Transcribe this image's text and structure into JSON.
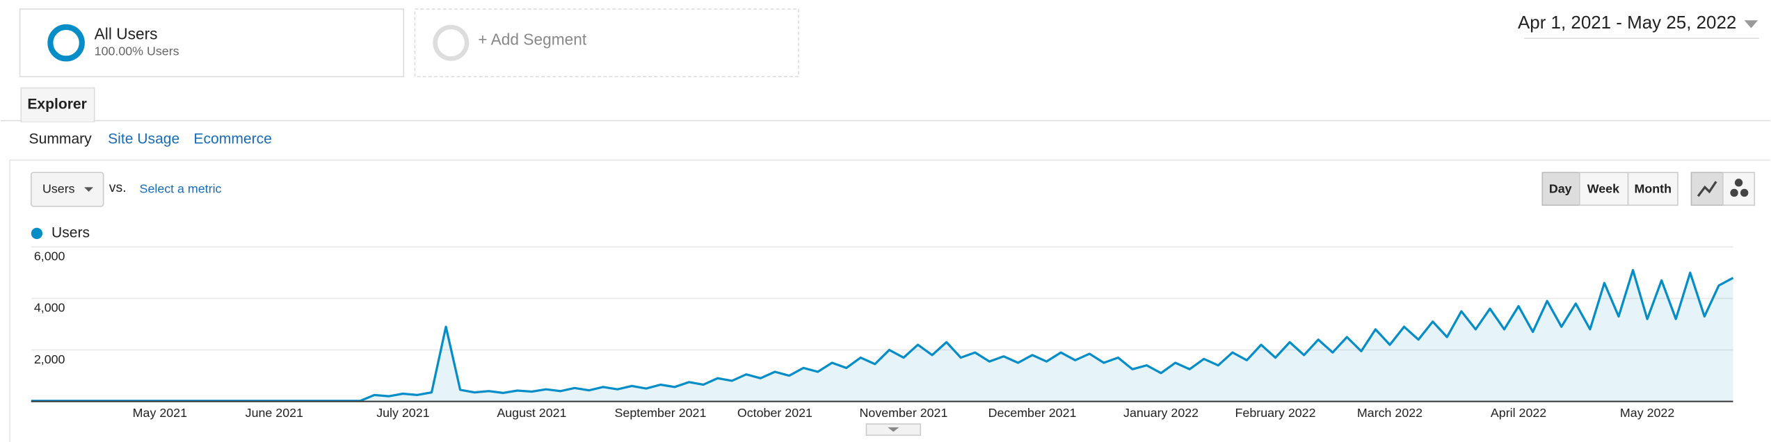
{
  "segments": [
    {
      "name": "All Users",
      "detail": "100.00% Users"
    }
  ],
  "add_segment": "+ Add Segment",
  "date_range": "Apr 1, 2021 - May 25, 2022",
  "tab": "Explorer",
  "subtabs": [
    "Summary",
    "Site Usage",
    "Ecommerce"
  ],
  "metric": "Users",
  "vs": "vs.",
  "select_metric": "Select a metric",
  "granularity": [
    "Day",
    "Week",
    "Month"
  ],
  "chart_data": {
    "type": "line",
    "categories": [
      null,
      null,
      null,
      null,
      null,
      null,
      null,
      null,
      null,
      "May 2021",
      null,
      null,
      null,
      null,
      null,
      null,
      null,
      "June 2021",
      null,
      null,
      null,
      null,
      null,
      null,
      null,
      null,
      "July 2021",
      null,
      null,
      null,
      null,
      null,
      null,
      null,
      null,
      "August 2021",
      null,
      null,
      null,
      null,
      null,
      null,
      null,
      null,
      "September 2021",
      null,
      null,
      null,
      null,
      null,
      null,
      null,
      "October 2021",
      null,
      null,
      null,
      null,
      null,
      null,
      null,
      null,
      "November 2021",
      null,
      null,
      null,
      null,
      null,
      null,
      null,
      null,
      "December 2021",
      null,
      null,
      null,
      null,
      null,
      null,
      null,
      null,
      "January 2022",
      null,
      null,
      null,
      null,
      null,
      null,
      null,
      "February 2022",
      null,
      null,
      null,
      null,
      null,
      null,
      null,
      "March 2022",
      null,
      null,
      null,
      null,
      null,
      null,
      null,
      null,
      "April 2022",
      null,
      null,
      null,
      null,
      null,
      null,
      null,
      null,
      "May 2022",
      null,
      null,
      null,
      null,
      null,
      null
    ],
    "series": [
      {
        "name": "Users",
        "color": "#058dc7",
        "values": [
          20,
          20,
          20,
          20,
          20,
          20,
          20,
          20,
          20,
          20,
          20,
          20,
          20,
          20,
          20,
          20,
          20,
          20,
          20,
          20,
          20,
          20,
          20,
          20,
          250,
          200,
          300,
          250,
          350,
          2900,
          450,
          350,
          400,
          330,
          420,
          380,
          470,
          400,
          520,
          430,
          560,
          470,
          600,
          500,
          650,
          560,
          750,
          650,
          900,
          800,
          1050,
          900,
          1150,
          1000,
          1300,
          1150,
          1500,
          1300,
          1700,
          1450,
          2000,
          1700,
          2200,
          1800,
          2300,
          1700,
          1900,
          1550,
          1750,
          1500,
          1800,
          1550,
          1900,
          1600,
          1850,
          1500,
          1700,
          1250,
          1400,
          1100,
          1500,
          1250,
          1650,
          1400,
          1900,
          1600,
          2200,
          1700,
          2300,
          1800,
          2400,
          1900,
          2500,
          1950,
          2800,
          2200,
          2900,
          2400,
          3100,
          2500,
          3500,
          2800,
          3600,
          2800,
          3700,
          2700,
          3900,
          2900,
          3800,
          2800,
          4600,
          3300,
          5100,
          3200,
          4700,
          3200,
          5000,
          3300,
          4500,
          4800
        ]
      }
    ],
    "ylim": [
      0,
      6000
    ],
    "yticks": [
      {
        "value": 2000,
        "label": "2,000"
      },
      {
        "value": 4000,
        "label": "4,000"
      },
      {
        "value": 6000,
        "label": "6,000"
      }
    ],
    "grid": true,
    "area": true
  }
}
